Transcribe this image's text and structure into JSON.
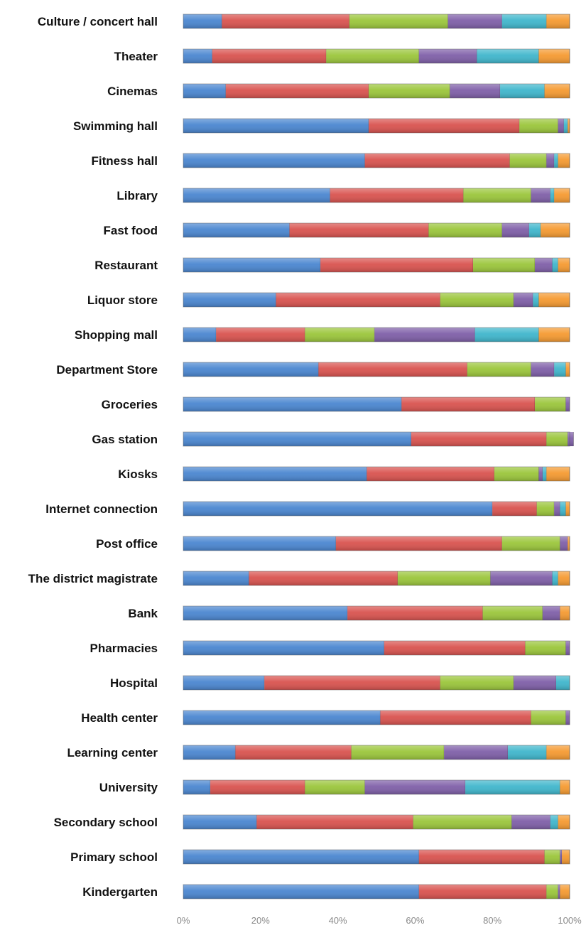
{
  "chart_data": {
    "type": "bar",
    "orientation": "horizontal",
    "stacked": true,
    "percent_stacked": true,
    "xlim": [
      0,
      100
    ],
    "x_ticks": [
      "0%",
      "20%",
      "40%",
      "60%",
      "80%",
      "100%"
    ],
    "grid": false,
    "legend": "none",
    "categories": [
      "Culture / concert hall",
      "Theater",
      "Cinemas",
      "Swimming hall",
      "Fitness hall",
      "Library",
      "Fast food",
      "Restaurant",
      "Liquor store",
      "Shopping mall",
      "Department Store",
      "Groceries",
      "Gas station",
      "Kiosks",
      "Internet connection",
      "Post office",
      "The district magistrate",
      "Bank",
      "Pharmacies",
      "Hospital",
      "Health center",
      "Learning center",
      "University",
      "Secondary school",
      "Primary school",
      "Kindergarten"
    ],
    "series": [
      {
        "color": "#4a86d0",
        "values": [
          10,
          7.5,
          11,
          48,
          47,
          38,
          27.5,
          35.5,
          24,
          8.5,
          35,
          56.5,
          59,
          47.5,
          80,
          39.5,
          17,
          42.5,
          52,
          21,
          51,
          13.5,
          7,
          19,
          61,
          61
        ]
      },
      {
        "color": "#d9534f",
        "values": [
          33,
          29.5,
          37,
          39,
          37.5,
          34.5,
          36,
          39.5,
          42.5,
          23,
          38.5,
          34.5,
          35,
          33,
          11.5,
          43,
          38.5,
          35,
          36.5,
          45.5,
          39,
          30,
          24.5,
          40.5,
          32.5,
          33
        ]
      },
      {
        "color": "#9bc63b",
        "values": [
          25.5,
          24,
          21,
          10,
          9.5,
          17.5,
          19,
          16,
          19,
          18,
          16.5,
          8,
          5.5,
          11.5,
          4.5,
          15,
          24,
          15.5,
          10.5,
          19,
          9,
          24,
          15.5,
          25.5,
          4,
          3
        ]
      },
      {
        "color": "#7f5fa8",
        "values": [
          14,
          15,
          13,
          1.5,
          2,
          5,
          7,
          4.5,
          5,
          26,
          6,
          1,
          1.5,
          1,
          1.5,
          2,
          16,
          4.5,
          1,
          11,
          1,
          16.5,
          26,
          10,
          0.5,
          0.5
        ]
      },
      {
        "color": "#3fb6cc",
        "values": [
          11.5,
          16,
          11.5,
          1,
          1,
          1,
          3,
          1.5,
          1.5,
          16.5,
          3,
          0,
          0,
          1,
          1.5,
          0,
          1.5,
          0,
          0,
          3.5,
          0,
          10,
          24.5,
          2,
          0,
          0
        ]
      },
      {
        "color": "#f59a31",
        "values": [
          6,
          8,
          6.5,
          0.5,
          3,
          4,
          7.5,
          3,
          8,
          8,
          1,
          0,
          0,
          6,
          1,
          0.5,
          3,
          2.5,
          0,
          0,
          0,
          6,
          2.5,
          3,
          2,
          2.5
        ]
      }
    ]
  }
}
